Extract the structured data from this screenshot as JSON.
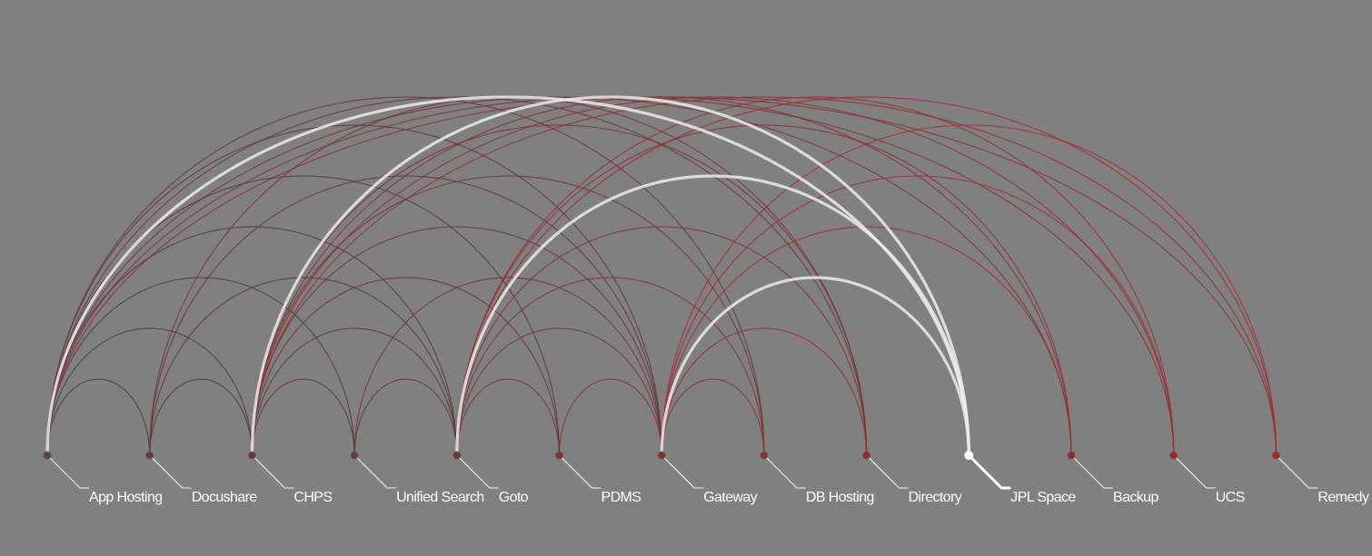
{
  "diagram": {
    "type": "arc-diagram",
    "nodes": [
      {
        "id": "app-hosting",
        "label": "App Hosting",
        "selected": false
      },
      {
        "id": "docushare",
        "label": "Docushare",
        "selected": false
      },
      {
        "id": "chps",
        "label": "CHPS",
        "selected": false
      },
      {
        "id": "unified-search",
        "label": "Unified Search",
        "selected": false
      },
      {
        "id": "goto",
        "label": "Goto",
        "selected": false
      },
      {
        "id": "pdms",
        "label": "PDMS",
        "selected": false
      },
      {
        "id": "gateway",
        "label": "Gateway",
        "selected": false
      },
      {
        "id": "db-hosting",
        "label": "DB Hosting",
        "selected": false
      },
      {
        "id": "directory",
        "label": "Directory",
        "selected": false
      },
      {
        "id": "jpl-space",
        "label": "JPL Space",
        "selected": true
      },
      {
        "id": "backup",
        "label": "Backup",
        "selected": false
      },
      {
        "id": "ucs",
        "label": "UCS",
        "selected": false
      },
      {
        "id": "remedy",
        "label": "Remedy",
        "selected": false
      }
    ],
    "highlighted_links": [
      [
        9,
        0
      ],
      [
        9,
        2
      ],
      [
        9,
        4
      ],
      [
        9,
        6
      ]
    ],
    "links": [
      [
        0,
        1
      ],
      [
        0,
        2
      ],
      [
        0,
        3
      ],
      [
        0,
        4
      ],
      [
        0,
        5
      ],
      [
        0,
        6
      ],
      [
        0,
        7
      ],
      [
        0,
        8
      ],
      [
        0,
        10
      ],
      [
        0,
        11
      ],
      [
        0,
        12
      ],
      [
        1,
        2
      ],
      [
        1,
        4
      ],
      [
        1,
        6
      ],
      [
        1,
        8
      ],
      [
        2,
        3
      ],
      [
        2,
        4
      ],
      [
        2,
        5
      ],
      [
        2,
        6
      ],
      [
        2,
        7
      ],
      [
        2,
        8
      ],
      [
        2,
        10
      ],
      [
        2,
        11
      ],
      [
        2,
        12
      ],
      [
        3,
        4
      ],
      [
        3,
        6
      ],
      [
        4,
        5
      ],
      [
        4,
        6
      ],
      [
        4,
        7
      ],
      [
        4,
        8
      ],
      [
        4,
        10
      ],
      [
        4,
        11
      ],
      [
        4,
        12
      ],
      [
        5,
        6
      ],
      [
        6,
        7
      ],
      [
        6,
        8
      ],
      [
        6,
        10
      ],
      [
        6,
        11
      ],
      [
        6,
        12
      ]
    ],
    "colors": {
      "background": "#808080",
      "arc_start": "#3a3a3a",
      "arc_end": "#c8202a",
      "highlight": "#ececec",
      "node": "#5a4040",
      "node_end": "#b02020",
      "label": "#ffffff"
    }
  }
}
